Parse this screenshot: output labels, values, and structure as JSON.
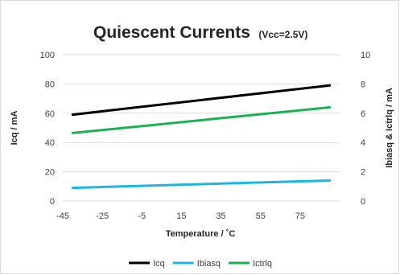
{
  "chart_data": {
    "type": "line",
    "title": "Quiescent Currents",
    "subtitle": "(Vcc=2.5V)",
    "xlabel": "Temperature / ˚C",
    "ylabel_left": "Icq / mA",
    "ylabel_right": "Ibiasq & Ictrlq / mA",
    "xlim": [
      -45,
      95
    ],
    "xticks": [
      -45,
      -25,
      -5,
      15,
      35,
      55,
      75
    ],
    "ylim_left": [
      0,
      100
    ],
    "yticks_left": [
      0,
      20,
      40,
      60,
      80,
      100
    ],
    "ylim_right": [
      0,
      10
    ],
    "yticks_right": [
      0,
      2,
      4,
      6,
      8,
      10
    ],
    "grid": true,
    "legend_position": "bottom",
    "series": [
      {
        "name": "Icq",
        "axis": "left",
        "color": "#000000",
        "x": [
          -40,
          90
        ],
        "values": [
          59,
          79
        ]
      },
      {
        "name": "Ibiasq",
        "axis": "right",
        "color": "#1cb5e8",
        "x": [
          -40,
          90
        ],
        "values": [
          0.9,
          1.4
        ]
      },
      {
        "name": "Ictrlq",
        "axis": "right",
        "color": "#19b251",
        "x": [
          -40,
          90
        ],
        "values": [
          4.65,
          6.4
        ]
      }
    ]
  }
}
